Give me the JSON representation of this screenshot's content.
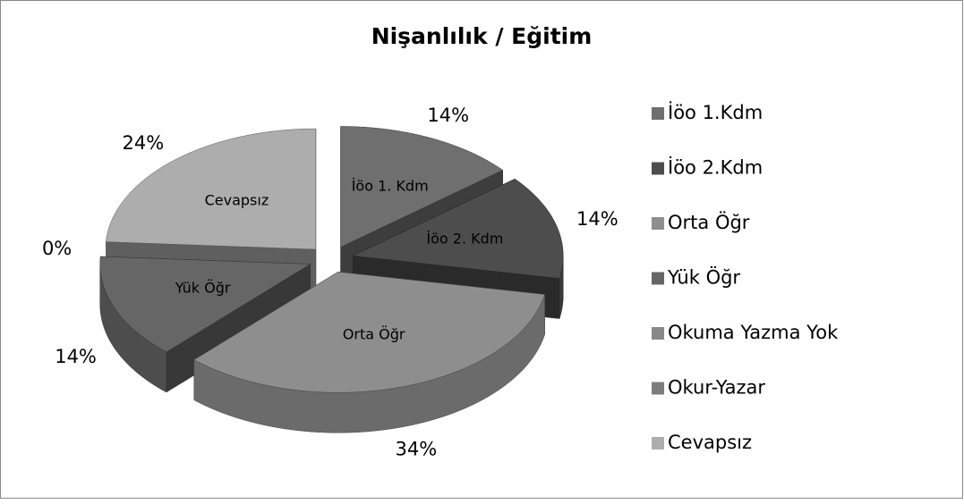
{
  "chart_data": {
    "type": "pie3d",
    "title": "Nişanlılık / Eğitim",
    "categories": [
      "İöo 1.Kdm",
      "İöo 2.Kdm",
      "Orta Öğr",
      "Yük Öğr",
      "Okuma Yazma Yok",
      "Okur-Yazar",
      "Cevapsız"
    ],
    "values": [
      14,
      14,
      34,
      14,
      0,
      0,
      24
    ],
    "value_labels": [
      "14%",
      "14%",
      "34%",
      "14%",
      "0%",
      null,
      "24%"
    ],
    "slice_labels": [
      "İöo 1. Kdm",
      "İöo 2. Kdm",
      "Orta Öğr",
      "Yük Öğr",
      null,
      null,
      "Cevapsız"
    ],
    "colors": [
      "#6f6f6f",
      "#4d4d4d",
      "#8e8e8e",
      "#666666",
      "#888888",
      "#7d7d7d",
      "#adadad"
    ],
    "legend": "right"
  }
}
